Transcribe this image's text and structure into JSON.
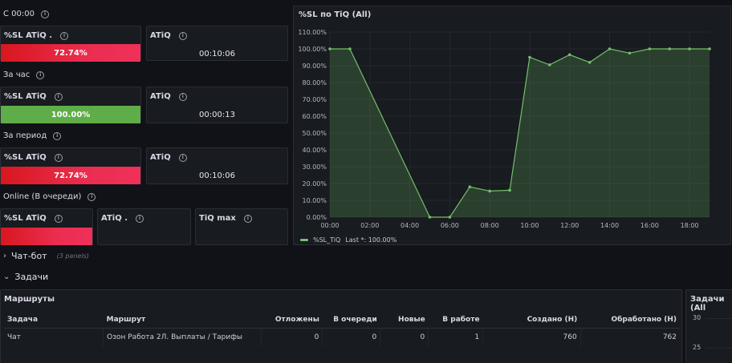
{
  "sections": {
    "s1": {
      "title": "С 00:00",
      "sl_label": "%SL ATiQ .",
      "sl_value": "72.74%",
      "atiq_label": "ATiQ",
      "atiq_value": "00:10:06"
    },
    "s2": {
      "title": "За час",
      "sl_label": "%SL ATiQ",
      "sl_value": "100.00%",
      "atiq_label": "ATiQ",
      "atiq_value": "00:00:13"
    },
    "s3": {
      "title": "За период",
      "sl_label": "%SL ATiQ",
      "sl_value": "72.74%",
      "atiq_label": "ATiQ",
      "atiq_value": "00:10:06"
    },
    "online": {
      "title": "Online (В очереди)",
      "sl_label": "%SL ATiQ",
      "atiq_label": "ATiQ .",
      "tiqmax_label": "TiQ max"
    }
  },
  "colors": {
    "bad": "#e02f44",
    "good": "#5fad48",
    "series": "#73bf69",
    "background": "#111217",
    "panel": "#181b1f"
  },
  "chart_panel": {
    "title": "%SL по TiQ (All)",
    "legend_name": "%SL_TiQ",
    "legend_last": "Last *: 100.00%"
  },
  "chart_data": {
    "type": "area",
    "title": "%SL по TiQ (All)",
    "x": [
      "00:00",
      "01:00",
      "02:00",
      "03:00",
      "04:00",
      "05:00",
      "06:00",
      "07:00",
      "08:00",
      "09:00",
      "10:00",
      "11:00",
      "12:00",
      "13:00",
      "14:00",
      "15:00",
      "16:00",
      "17:00",
      "18:00",
      "19:00"
    ],
    "series": [
      {
        "name": "%SL_TiQ",
        "values": [
          100,
          100,
          null,
          null,
          null,
          0,
          0,
          18,
          15.5,
          16,
          95,
          90.5,
          96.5,
          92,
          100,
          97.5,
          100,
          100,
          100,
          100
        ]
      }
    ],
    "x_ticks": [
      "00:00",
      "02:00",
      "04:00",
      "06:00",
      "08:00",
      "10:00",
      "12:00",
      "14:00",
      "16:00",
      "18:00"
    ],
    "y_ticks": [
      "0.00%",
      "10.00%",
      "20.00%",
      "30.00%",
      "40.00%",
      "50.00%",
      "60.00%",
      "70.00%",
      "80.00%",
      "90.00%",
      "100.00%",
      "110.00%"
    ],
    "ylim": [
      0,
      110
    ],
    "legend": "bottom-left",
    "grid": true
  },
  "rows": {
    "chatbot": {
      "title": "Чат-бот",
      "sub": "(3 panels)"
    },
    "tasks": {
      "title": "Задачи"
    }
  },
  "table_panel": {
    "title": "Маршруты",
    "headers": [
      "Задача",
      "Маршрут",
      "Отложены",
      "В очереди",
      "Новые",
      "В работе",
      "Создано (Н)",
      "Обработано (Н)"
    ],
    "rows": [
      [
        "Чат",
        "Озон Работа 2Л. Выплаты / Тарифы",
        "0",
        "0",
        "0",
        "1",
        "760",
        "762"
      ]
    ]
  },
  "right_panel": {
    "title": "Задачи (All",
    "y_ticks": [
      "30",
      "25"
    ]
  }
}
